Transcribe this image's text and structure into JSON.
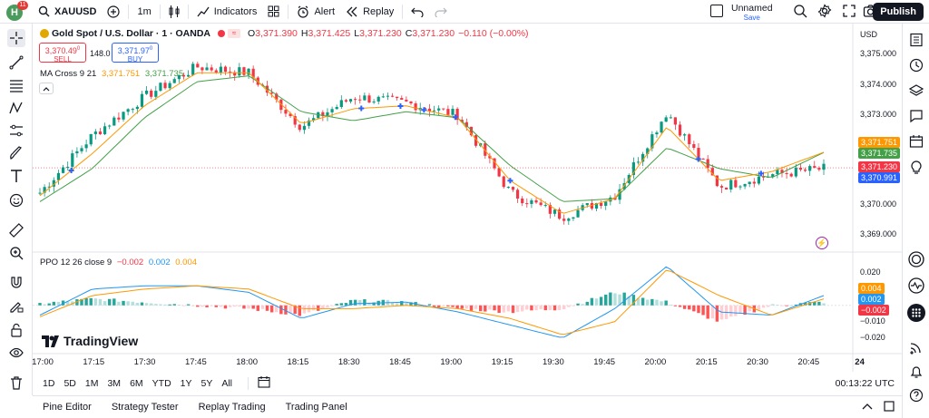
{
  "topbar": {
    "notif_count": "11",
    "avatar": "H",
    "symbol": "XAUUSD",
    "interval": "1m",
    "indicators": "Indicators",
    "alert": "Alert",
    "replay": "Replay",
    "layout_name": "Unnamed",
    "layout_status": "Save",
    "publish": "Publish"
  },
  "legend": {
    "title": "Gold Spot / U.S. Dollar · 1 · OANDA",
    "o_label": "O",
    "o": "3,371.390",
    "h_label": "H",
    "h": "3,371.425",
    "l_label": "L",
    "l": "3,371.230",
    "c_label": "C",
    "c": "3,371.230",
    "change": "−0.110 (−0.00%)",
    "sell_price": "3,370.49",
    "sell_sup": "0",
    "sell_label": "SELL",
    "spread": "148.0",
    "buy_price": "3,371.97",
    "buy_sup": "0",
    "buy_label": "BUY",
    "ma_name": "MA Cross 9 21",
    "ma_v1": "3,371.751",
    "ma_v2": "3,371.735",
    "ppo_name": "PPO 12 26 close 9",
    "ppo_v1": "−0.002",
    "ppo_v2": "0.002",
    "ppo_v3": "0.004"
  },
  "price_axis": {
    "currency": "USD",
    "ticks": [
      "3,375.000",
      "3,374.000",
      "3,373.000",
      "3,370.000",
      "3,369.000"
    ],
    "labels": {
      "ma_fast": "3,371.751",
      "ma_slow": "3,371.735",
      "last": "3,371.230",
      "bid": "3,370.991"
    }
  },
  "ppo_axis": {
    "ticks": [
      "0.020",
      "−0.010",
      "−0.020"
    ],
    "labels": {
      "v3": "0.004",
      "v2": "0.002",
      "v1": "−0.002"
    }
  },
  "time_axis": {
    "ticks": [
      "17:00",
      "17:15",
      "17:30",
      "17:45",
      "18:00",
      "18:15",
      "18:30",
      "18:45",
      "19:00",
      "19:15",
      "19:30",
      "19:45",
      "20:00",
      "20:15",
      "20:30",
      "20:45",
      "24"
    ]
  },
  "ranges": [
    "1D",
    "5D",
    "1M",
    "3M",
    "6M",
    "YTD",
    "1Y",
    "5Y",
    "All"
  ],
  "clock": "00:13:22 UTC",
  "bottom_tabs": [
    "Pine Editor",
    "Strategy Tester",
    "Replay Trading",
    "Trading Panel"
  ],
  "brand": "TradingView",
  "colors": {
    "up": "#089981",
    "down": "#f23645",
    "ma_fast": "#ff9800",
    "ma_slow": "#43a047",
    "ppo": "#2196f3",
    "signal": "#ff9800"
  },
  "chart_data": {
    "type": "candlestick",
    "ylim": [
      3368.6,
      3375.8
    ],
    "x": [
      "17:00",
      "17:15",
      "17:30",
      "17:45",
      "18:00",
      "18:15",
      "18:30",
      "18:45",
      "19:00",
      "19:15",
      "19:30",
      "19:45",
      "20:00",
      "20:15",
      "20:30",
      "20:45"
    ],
    "close": [
      3370.4,
      3372.3,
      3373.6,
      3374.6,
      3374.4,
      3372.6,
      3373.6,
      3373.4,
      3373.0,
      3370.4,
      3369.6,
      3370.3,
      3373.1,
      3370.6,
      3371.0,
      3371.2
    ],
    "ma_fast": [
      3370.3,
      3371.7,
      3373.3,
      3374.4,
      3374.4,
      3372.7,
      3373.2,
      3373.3,
      3372.9,
      3370.8,
      3369.7,
      3370.2,
      3372.6,
      3370.8,
      3371.1,
      3371.75
    ],
    "ma_slow": [
      3370.1,
      3371.2,
      3372.9,
      3374.1,
      3374.3,
      3373.1,
      3372.8,
      3373.1,
      3372.9,
      3371.3,
      3370.1,
      3370.2,
      3371.9,
      3371.2,
      3370.9,
      3371.74
    ],
    "ppo": [
      -0.006,
      0.01,
      0.012,
      0.012,
      0.008,
      -0.008,
      0.001,
      0.002,
      -0.004,
      -0.012,
      -0.02,
      -0.002,
      0.024,
      -0.004,
      -0.006,
      0.006
    ],
    "signal": [
      -0.007,
      0.006,
      0.01,
      0.012,
      0.01,
      -0.002,
      -0.002,
      0.0,
      -0.002,
      -0.008,
      -0.018,
      -0.01,
      0.022,
      0.006,
      -0.006,
      0.004
    ],
    "ppo_ylim": [
      -0.024,
      0.026
    ]
  }
}
